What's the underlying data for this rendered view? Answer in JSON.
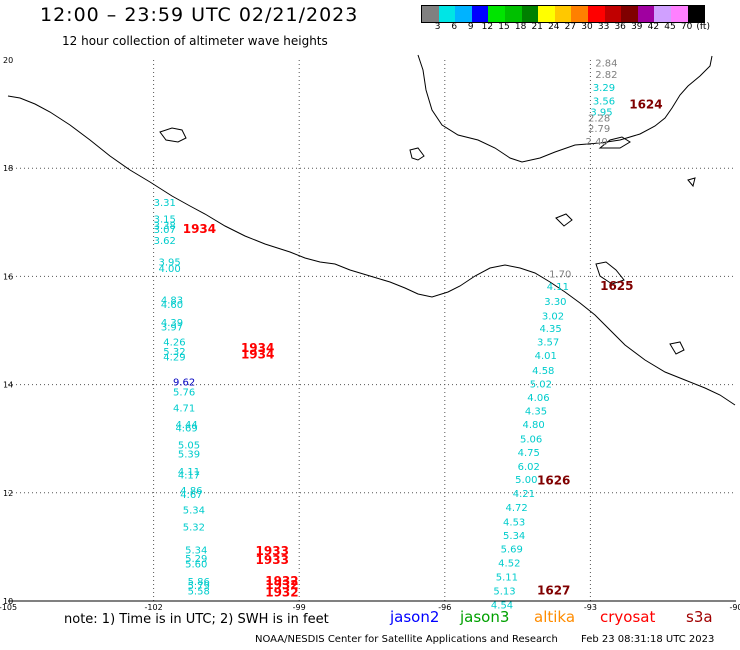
{
  "title": "12:00 – 23:59 UTC 02/21/2023",
  "subtitle": "12 hour collection of altimeter wave heights",
  "colorbar": {
    "colors": [
      "#808080",
      "#00e5e5",
      "#00b3ff",
      "#0000ff",
      "#00e500",
      "#00c000",
      "#008000",
      "#ffff00",
      "#ffc800",
      "#ff8000",
      "#ff0000",
      "#c00000",
      "#800000",
      "#a000a0",
      "#d0a0ff",
      "#ff80ff",
      "#000000"
    ],
    "labels": [
      "3",
      "6",
      "9",
      "12",
      "15",
      "18",
      "21",
      "24",
      "27",
      "30",
      "33",
      "36",
      "39",
      "42",
      "45",
      "70",
      "(ft)"
    ]
  },
  "axes": {
    "lon_ticks": [
      "-105",
      "-102",
      "-99",
      "-96",
      "-93",
      "-90"
    ],
    "lat_ticks": [
      "20",
      "18",
      "16",
      "14",
      "12",
      "10"
    ]
  },
  "tracks": [
    {
      "hour": "1934",
      "color": "#ff0000",
      "label_lat": 16.8,
      "label_lon": -101.4,
      "obs": [
        [
          "3.31",
          17.3,
          -102.0
        ],
        [
          "3.15",
          17.0,
          -102.0
        ],
        [
          "3.38",
          16.88,
          -102.0
        ],
        [
          "3.07",
          16.8,
          -102.0
        ],
        [
          "3.62",
          16.6,
          -102.0
        ],
        [
          "3.95",
          16.2,
          -101.9
        ],
        [
          "4.00",
          16.08,
          -101.9
        ],
        [
          "4.83",
          15.5,
          -101.85
        ],
        [
          "4.60",
          15.42,
          -101.85
        ],
        [
          "4.39",
          15.08,
          -101.85
        ],
        [
          "3.97",
          15.0,
          -101.85
        ],
        [
          "4.26",
          14.72,
          -101.8
        ],
        [
          "5.32",
          14.55,
          -101.8
        ],
        [
          "4.29",
          14.45,
          -101.8
        ]
      ]
    },
    {
      "hour": "1934",
      "color": "#ff0000",
      "label_lat": 14.6,
      "label_lon": -100.2,
      "obs": []
    },
    {
      "hour": "1934",
      "color": "#ff0000",
      "label_lat": 14.48,
      "label_lon": -100.2,
      "obs": []
    },
    {
      "hour": "1933",
      "color": "#ff0000",
      "label_lat": 10.85,
      "label_lon": -99.9,
      "obs": [
        [
          "9.62",
          13.98,
          -101.6
        ],
        [
          "5.76",
          13.8,
          -101.6
        ],
        [
          "4.71",
          13.5,
          -101.6
        ],
        [
          "4.44",
          13.2,
          -101.55
        ],
        [
          "4.69",
          13.13,
          -101.55
        ],
        [
          "5.05",
          12.82,
          -101.5
        ],
        [
          "5.39",
          12.65,
          -101.5
        ],
        [
          "4.11",
          12.33,
          -101.5
        ],
        [
          "4.17",
          12.26,
          -101.5
        ],
        [
          "4.86",
          11.98,
          -101.45
        ],
        [
          "4.67",
          11.9,
          -101.45
        ],
        [
          "5.34",
          11.62,
          -101.4
        ],
        [
          "5.32",
          11.3,
          -101.4
        ],
        [
          "5.34",
          10.88,
          -101.35
        ],
        [
          "5.29",
          10.72,
          -101.35
        ],
        [
          "5.60",
          10.62,
          -101.35
        ],
        [
          "5.86",
          10.3,
          -101.3
        ],
        [
          "5.79",
          10.22,
          -101.3
        ],
        [
          "5.58",
          10.12,
          -101.3
        ]
      ]
    },
    {
      "hour": "1933",
      "color": "#ff0000",
      "label_lat": 10.68,
      "label_lon": -99.9,
      "obs": []
    },
    {
      "hour": "1932",
      "color": "#ff0000",
      "label_lat": 10.3,
      "label_lon": -99.7,
      "obs": []
    },
    {
      "hour": "1932",
      "color": "#ff0000",
      "label_lat": 10.22,
      "label_lon": -99.7,
      "obs": []
    },
    {
      "hour": "1932",
      "color": "#ff0000",
      "label_lat": 10.08,
      "label_lon": -99.7,
      "obs": []
    },
    {
      "hour": "1624",
      "color": "#800000",
      "label_lat": 19.1,
      "label_lon": -92.2,
      "obs": [
        [
          "2.84",
          19.88,
          -92.9
        ],
        [
          "2.82",
          19.67,
          -92.9
        ],
        [
          "3.29",
          19.43,
          -92.95
        ],
        [
          "3.56",
          19.18,
          -92.95
        ],
        [
          "3.95",
          18.97,
          -93.0
        ],
        [
          "2.28",
          18.86,
          -93.05
        ],
        [
          "2.79",
          18.67,
          -93.05
        ],
        [
          "2.40",
          18.43,
          -93.1
        ]
      ]
    },
    {
      "hour": "1625",
      "color": "#800000",
      "label_lat": 15.75,
      "label_lon": -92.8,
      "obs": [
        [
          "1.70",
          15.98,
          -93.85
        ],
        [
          "4.11",
          15.75,
          -93.9
        ],
        [
          "3.30",
          15.47,
          -93.95
        ],
        [
          "3.02",
          15.2,
          -94.0
        ],
        [
          "4.35",
          14.97,
          -94.05
        ],
        [
          "3.57",
          14.72,
          -94.1
        ],
        [
          "4.01",
          14.47,
          -94.15
        ],
        [
          "4.58",
          14.2,
          -94.2
        ],
        [
          "5.02",
          13.95,
          -94.25
        ],
        [
          "4.06",
          13.7,
          -94.3
        ]
      ]
    },
    {
      "hour": "1626",
      "color": "#800000",
      "label_lat": 12.15,
      "label_lon": -94.1,
      "obs": [
        [
          "4.35",
          13.45,
          -94.35
        ],
        [
          "4.80",
          13.2,
          -94.4
        ],
        [
          "5.06",
          12.93,
          -94.45
        ],
        [
          "4.75",
          12.68,
          -94.5
        ],
        [
          "6.02",
          12.42,
          -94.5
        ],
        [
          "5.00",
          12.18,
          -94.55
        ],
        [
          "4.21",
          11.92,
          -94.6
        ],
        [
          "4.72",
          11.66,
          -94.75
        ],
        [
          "4.53",
          11.4,
          -94.8
        ],
        [
          "5.34",
          11.15,
          -94.8
        ],
        [
          "5.69",
          10.9,
          -94.85
        ],
        [
          "4.52",
          10.64,
          -94.9
        ],
        [
          "5.11",
          10.38,
          -94.95
        ],
        [
          "5.13",
          10.12,
          -95.0
        ],
        [
          "4.54",
          9.86,
          -95.05
        ]
      ]
    },
    {
      "hour": "1627",
      "color": "#800000",
      "label_lat": 10.12,
      "label_lon": -94.1,
      "obs": []
    }
  ],
  "note": "note: 1) Time is in UTC; 2) SWH is in feet",
  "satellites": [
    {
      "name": "jason2",
      "color": "#0000ff"
    },
    {
      "name": "jason3",
      "color": "#00a000"
    },
    {
      "name": "altika",
      "color": "#ff8c00"
    },
    {
      "name": "cryosat",
      "color": "#ff0000"
    },
    {
      "name": "s3a",
      "color": "#a00000"
    }
  ],
  "credit": "NOAA/NESDIS Center for Satellite Applications and Research",
  "credit_date": "Feb 23 08:31:18 UTC 2023"
}
